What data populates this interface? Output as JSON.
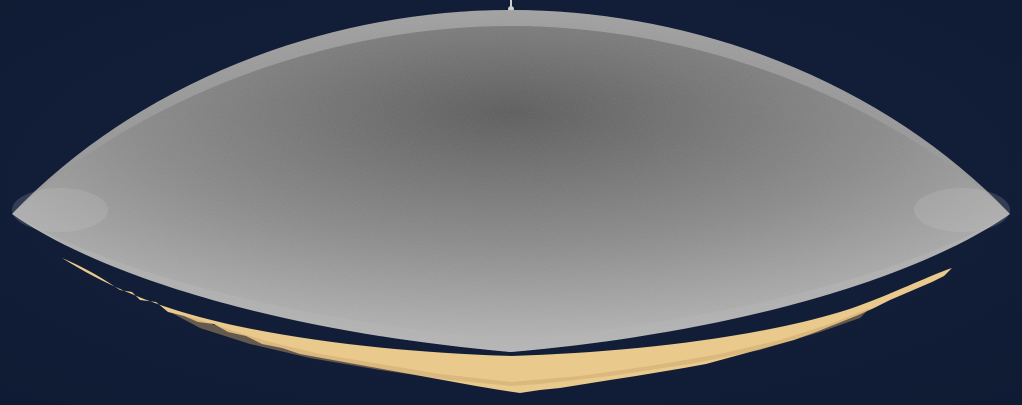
{
  "scene": {
    "subject": "pendant-lamp-shade",
    "colors": {
      "background": "#16233f",
      "background_edge": "#0f1a33",
      "shade_highlight": "#b9b9b9",
      "shade_mid": "#8a8a8a",
      "shade_shadow": "#5a5a5a",
      "gold_leaf": "#e9c98c",
      "gold_leaf_dark": "#c9a56a",
      "cord": "#cfcfcf"
    }
  }
}
